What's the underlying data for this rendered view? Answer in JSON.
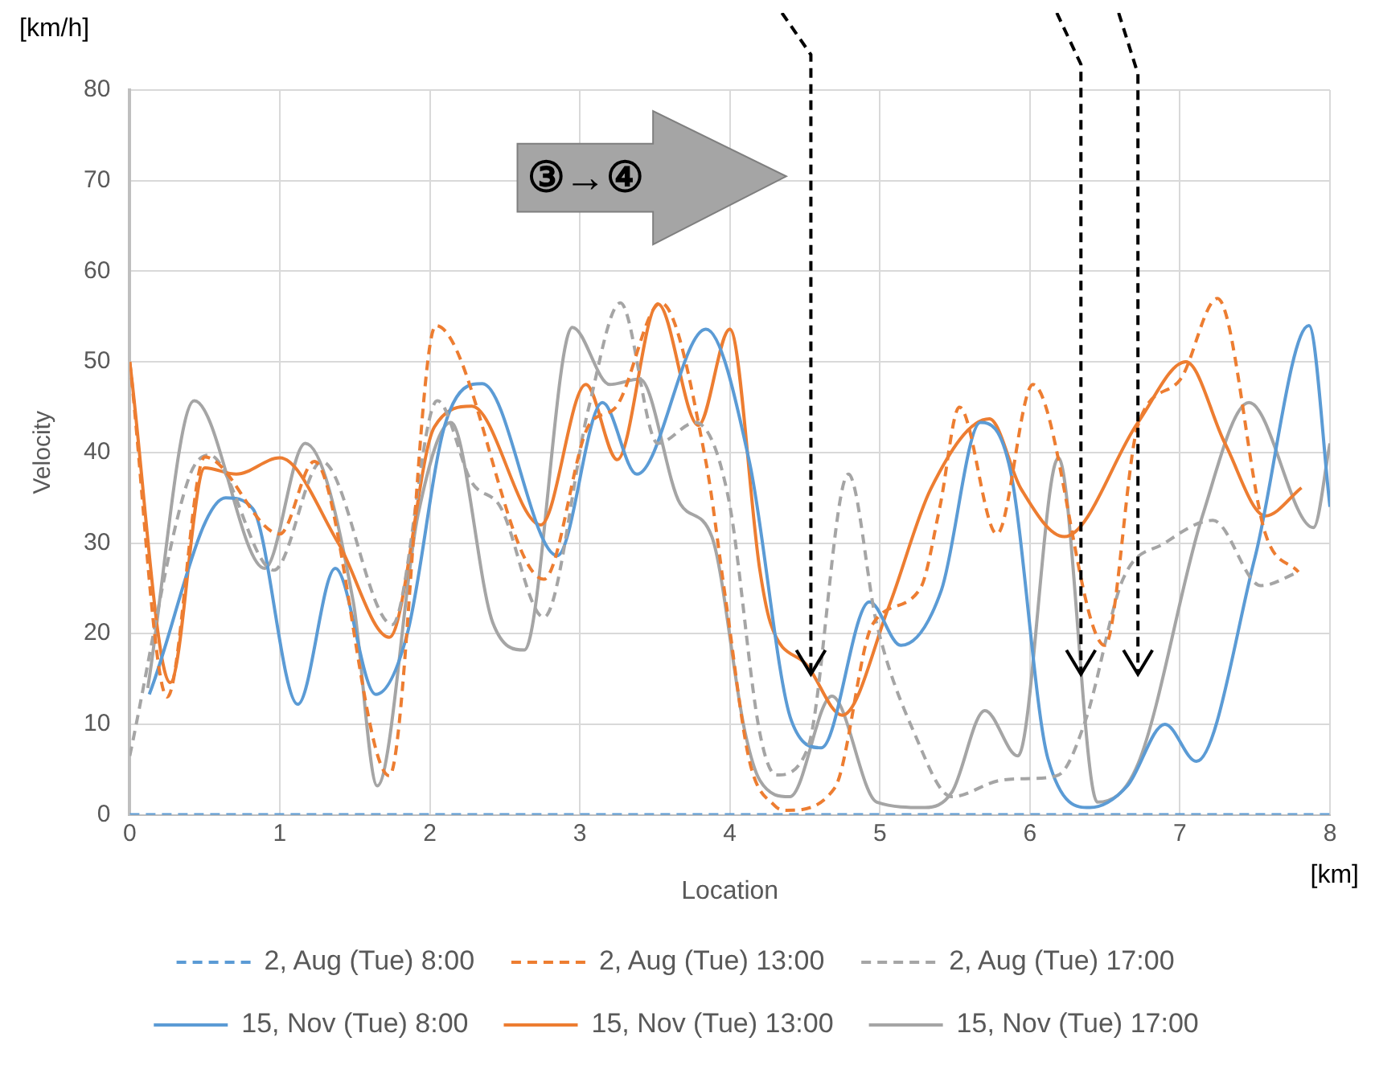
{
  "chart_data": {
    "type": "line",
    "xlabel": "Location",
    "ylabel": "Velocity",
    "annotations": [
      "[km/h]",
      "[km]",
      "③→④"
    ],
    "xlim": [
      0,
      8
    ],
    "xticks": [
      0,
      1,
      2,
      3,
      4,
      5,
      6,
      7,
      8
    ],
    "ylim": [
      0,
      80
    ],
    "yticks": [
      0,
      10,
      20,
      30,
      40,
      50,
      60,
      70,
      80
    ],
    "ref_lines": [
      {
        "axis": "x",
        "value": 4.54,
        "color": "#000000",
        "line_style": "dashed"
      },
      {
        "axis": "x",
        "value": 6.34,
        "color": "#000000",
        "line_style": "dashed"
      },
      {
        "axis": "x",
        "value": 6.72,
        "color": "#000000",
        "line_style": "dashed"
      }
    ],
    "grid": true,
    "legend": "bottom",
    "marker": "none",
    "series": [
      {
        "name": "2, Aug (Tue) 8:00",
        "color": "#5b9bd5",
        "line_style": "dashed",
        "x": [
          0,
          8
        ],
        "values": [
          0,
          0
        ]
      },
      {
        "name": "2, Aug (Tue) 13:00",
        "color": "#ed7d31",
        "line_style": "dashed",
        "x": [
          0,
          0.25,
          0.5,
          1.0,
          1.23,
          1.73,
          2.04,
          2.76,
          3.06,
          3.24,
          3.54,
          3.84,
          3.97,
          4.13,
          4.3,
          4.38,
          4.7,
          4.95,
          5.27,
          5.4,
          5.53,
          5.78,
          6.02,
          6.5,
          6.72,
          7.0,
          7.25,
          7.57,
          7.79
        ],
        "values": [
          50,
          13,
          39.5,
          31,
          39,
          4.3,
          54,
          26,
          43,
          45,
          56.5,
          39,
          24,
          6,
          1,
          0.5,
          3,
          21,
          25,
          34,
          45,
          31,
          47.5,
          18.7,
          43,
          48,
          57,
          31,
          26.8
        ]
      },
      {
        "name": "2, Aug (Tue) 17:00",
        "color": "#a5a5a5",
        "line_style": "dashed",
        "x": [
          0,
          0.39,
          0.53,
          0.96,
          1.28,
          1.75,
          2.05,
          2.28,
          2.47,
          2.76,
          3.06,
          3.27,
          3.52,
          3.77,
          3.99,
          4.2,
          4.31,
          4.52,
          4.79,
          4.98,
          5.23,
          5.48,
          5.8,
          6.0,
          6.19,
          6.37,
          6.62,
          6.9,
          7.22,
          7.54,
          7.79
        ],
        "values": [
          6.5,
          37,
          39.7,
          27,
          39,
          21,
          45.7,
          36.7,
          34,
          21.8,
          45,
          56.5,
          41,
          43.3,
          35,
          9,
          4.4,
          7.4,
          37.6,
          21,
          9,
          2,
          3.8,
          4,
          4.4,
          10.4,
          26,
          30,
          32.5,
          25.3,
          26.8
        ]
      },
      {
        "name": "15, Nov (Tue) 8:00",
        "color": "#5b9bd5",
        "line_style": "solid",
        "x": [
          0.13,
          0.64,
          0.82,
          1.12,
          1.37,
          1.64,
          1.85,
          2.1,
          2.35,
          2.85,
          3.15,
          3.38,
          3.84,
          4.13,
          4.41,
          4.61,
          4.93,
          5.14,
          5.41,
          5.67,
          5.87,
          6.12,
          6.4,
          6.65,
          6.9,
          7.11,
          7.5,
          7.86,
          8.0
        ],
        "values": [
          13.3,
          35,
          33.8,
          12.2,
          27.2,
          13.3,
          20,
          43,
          47.6,
          28.6,
          45.5,
          37.6,
          53.6,
          39,
          10.4,
          7.4,
          23.5,
          18.7,
          24.8,
          43.3,
          38,
          6.2,
          0.8,
          3.2,
          10,
          5.9,
          28.4,
          54,
          34
        ]
      },
      {
        "name": "15, Nov (Tue) 13:00",
        "color": "#ed7d31",
        "line_style": "solid",
        "x": [
          0,
          0.27,
          0.5,
          0.71,
          1.0,
          1.39,
          1.73,
          2.03,
          2.28,
          2.74,
          3.04,
          3.25,
          3.52,
          3.79,
          4.0,
          4.2,
          4.27,
          4.52,
          4.75,
          5.06,
          5.34,
          5.73,
          5.94,
          6.23,
          6.72,
          7.04,
          7.3,
          7.57,
          7.81
        ],
        "values": [
          50,
          14.6,
          38.3,
          37.6,
          39.4,
          30,
          19.6,
          42.8,
          45.1,
          32,
          47.5,
          39.2,
          56.4,
          43,
          53.6,
          27,
          21.2,
          16.4,
          11,
          23,
          36,
          43.7,
          36,
          30.7,
          43.3,
          50,
          41,
          33,
          36.1
        ]
      },
      {
        "name": "15, Nov (Tue) 17:00",
        "color": "#a5a5a5",
        "line_style": "solid",
        "x": [
          0.12,
          0.43,
          0.9,
          1.17,
          1.49,
          1.65,
          1.92,
          2.14,
          2.42,
          2.63,
          2.95,
          3.2,
          3.4,
          3.67,
          3.88,
          4.1,
          4.2,
          4.4,
          4.68,
          4.98,
          5.3,
          5.48,
          5.7,
          5.92,
          6.19,
          6.45,
          6.72,
          7.15,
          7.46,
          7.89,
          8.0
        ],
        "values": [
          14,
          45.7,
          27.2,
          41,
          23.5,
          3.2,
          33,
          43.3,
          21.2,
          18.2,
          53.8,
          47.5,
          48.1,
          34.3,
          30.7,
          9.2,
          3.8,
          2,
          13.1,
          1.4,
          0.8,
          2.5,
          11.5,
          6.5,
          39.4,
          1.4,
          5.6,
          33,
          45.5,
          31.7,
          41
        ]
      }
    ]
  }
}
